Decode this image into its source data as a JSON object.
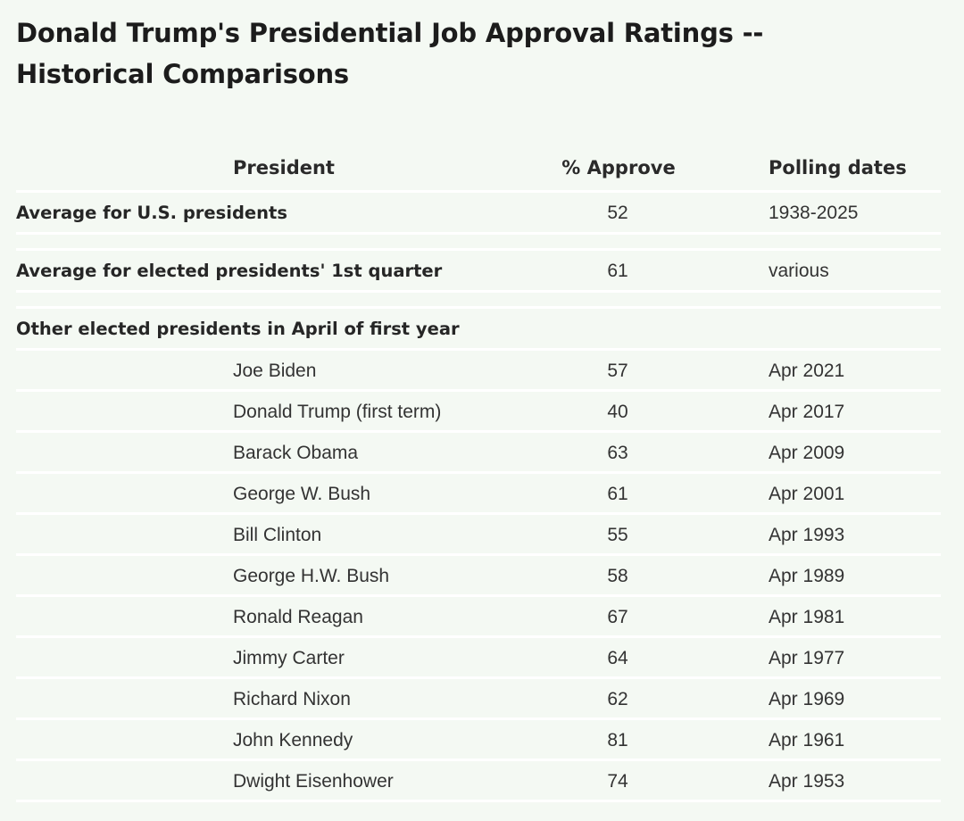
{
  "title": "Donald Trump's Presidential Job Approval Ratings -- Historical Comparisons",
  "headers": {
    "president": "President",
    "approve": "% Approve",
    "dates": "Polling dates"
  },
  "summary_rows": [
    {
      "label": "Average for U.S. presidents",
      "approve": "52",
      "dates": "1938-2025"
    },
    {
      "label": "Average for elected presidents' 1st quarter",
      "approve": "61",
      "dates": "various"
    }
  ],
  "section_label": "Other elected presidents in April of first year",
  "rows": [
    {
      "president": "Joe Biden",
      "approve": "57",
      "dates": "Apr 2021"
    },
    {
      "president": "Donald Trump (first term)",
      "approve": "40",
      "dates": "Apr 2017"
    },
    {
      "president": "Barack Obama",
      "approve": "63",
      "dates": "Apr 2009"
    },
    {
      "president": "George W. Bush",
      "approve": "61",
      "dates": "Apr 2001"
    },
    {
      "president": "Bill Clinton",
      "approve": "55",
      "dates": "Apr 1993"
    },
    {
      "president": "George H.W. Bush",
      "approve": "58",
      "dates": "Apr 1989"
    },
    {
      "president": "Ronald Reagan",
      "approve": "67",
      "dates": "Apr 1981"
    },
    {
      "president": "Jimmy Carter",
      "approve": "64",
      "dates": "Apr 1977"
    },
    {
      "president": "Richard Nixon",
      "approve": "62",
      "dates": "Apr 1969"
    },
    {
      "president": "John Kennedy",
      "approve": "81",
      "dates": "Apr 1961"
    },
    {
      "president": "Dwight Eisenhower",
      "approve": "74",
      "dates": "Apr 1953"
    }
  ]
}
